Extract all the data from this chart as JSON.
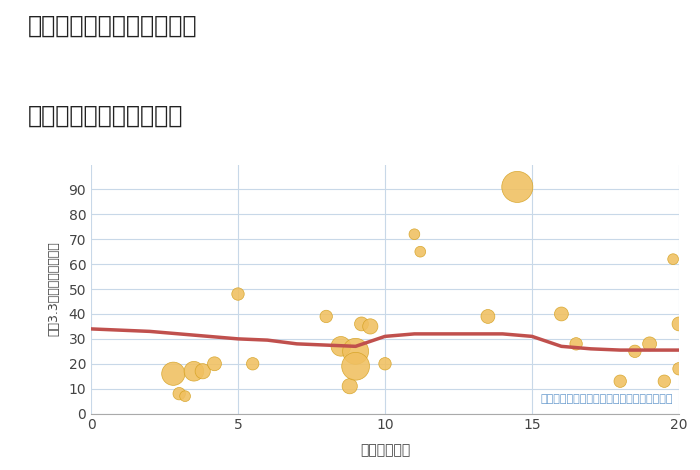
{
  "title_line1": "岐阜県高山市荘川町黒谷の",
  "title_line2": "駅距離別中古戸建て価格",
  "xlabel": "駅距離（分）",
  "ylabel": "坪（3.3㎡）単価（万円）",
  "annotation": "円の大きさは、取引のあった物件面積を示す",
  "xlim": [
    0,
    20
  ],
  "ylim": [
    0,
    100
  ],
  "yticks": [
    0,
    10,
    20,
    30,
    40,
    50,
    60,
    70,
    80,
    90
  ],
  "xticks": [
    0,
    5,
    10,
    15,
    20
  ],
  "bubble_color": "#F0C060",
  "bubble_edge_color": "#D4A020",
  "trend_color": "#C0504D",
  "bg_color": "#FFFFFF",
  "grid_color": "#C8D8E8",
  "scatter_x": [
    2.8,
    3.0,
    3.2,
    3.5,
    3.8,
    4.2,
    5.0,
    5.5,
    8.0,
    8.5,
    8.8,
    9.0,
    9.0,
    9.2,
    9.5,
    10.0,
    11.0,
    11.2,
    13.5,
    14.5,
    16.0,
    16.5,
    18.0,
    18.5,
    19.0,
    19.5,
    19.8,
    20.0,
    20.0
  ],
  "scatter_y": [
    16,
    8,
    7,
    17,
    17,
    20,
    48,
    20,
    39,
    27,
    11,
    25,
    19,
    36,
    35,
    20,
    72,
    65,
    39,
    91,
    40,
    28,
    13,
    25,
    28,
    13,
    62,
    36,
    18
  ],
  "scatter_size": [
    280,
    80,
    60,
    200,
    120,
    100,
    80,
    80,
    80,
    200,
    120,
    350,
    400,
    100,
    120,
    80,
    60,
    60,
    100,
    500,
    100,
    80,
    80,
    80,
    100,
    80,
    60,
    100,
    80
  ],
  "trend_x": [
    0,
    1,
    2,
    3,
    4,
    5,
    6,
    7,
    8,
    9,
    10,
    11,
    12,
    13,
    14,
    15,
    16,
    17,
    18,
    19,
    20
  ],
  "trend_y": [
    34,
    33.5,
    33,
    32,
    31,
    30,
    29.5,
    28,
    27.5,
    27,
    31,
    32,
    32,
    32,
    32,
    31,
    27,
    26,
    25.5,
    25.5,
    25.5
  ]
}
